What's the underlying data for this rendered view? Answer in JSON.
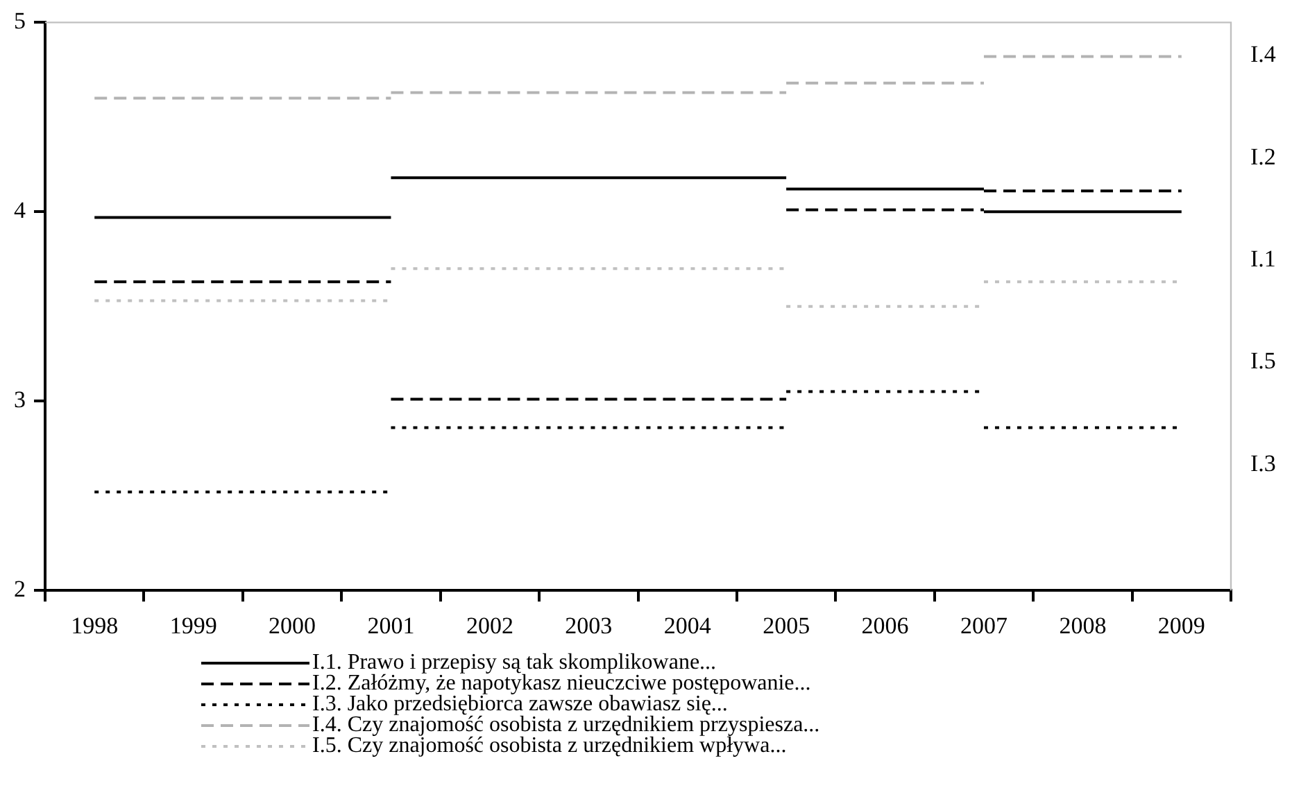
{
  "chart_data": {
    "type": "line",
    "xlim": [
      1997.5,
      2009.5
    ],
    "xticks": [
      {
        "value": 1997.5,
        "label": null
      },
      {
        "value": 1998,
        "label": "1998"
      },
      {
        "value": 1998.5,
        "label": null
      },
      {
        "value": 1999,
        "label": "1999"
      },
      {
        "value": 1999.5,
        "label": null
      },
      {
        "value": 2000,
        "label": "2000"
      },
      {
        "value": 2000.5,
        "label": null
      },
      {
        "value": 2001,
        "label": "2001"
      },
      {
        "value": 2001.5,
        "label": null
      },
      {
        "value": 2002,
        "label": "2002"
      },
      {
        "value": 2002.5,
        "label": null
      },
      {
        "value": 2003,
        "label": "2003"
      },
      {
        "value": 2003.5,
        "label": null
      },
      {
        "value": 2004,
        "label": "2004"
      },
      {
        "value": 2004.5,
        "label": null
      },
      {
        "value": 2005,
        "label": "2005"
      },
      {
        "value": 2005.5,
        "label": null
      },
      {
        "value": 2006,
        "label": "2006"
      },
      {
        "value": 2006.5,
        "label": null
      },
      {
        "value": 2007,
        "label": "2007"
      },
      {
        "value": 2007.5,
        "label": null
      },
      {
        "value": 2008,
        "label": "2008"
      },
      {
        "value": 2008.5,
        "label": null
      },
      {
        "value": 2009,
        "label": "2009"
      },
      {
        "value": 2009.5,
        "label": null
      }
    ],
    "ylim": [
      2,
      5
    ],
    "yticks": [
      2,
      3,
      4,
      5
    ],
    "grid": false,
    "legend": "bottom",
    "marker": "none",
    "series": [
      {
        "name": "I.1. Prawo i przepisy są tak skomplikowane...",
        "color": "#000000",
        "line_style": "solid",
        "x": [
          1998,
          2001,
          2001,
          2005,
          2005,
          2007,
          2007,
          2009
        ],
        "values": [
          3.97,
          3.97,
          4.18,
          4.18,
          4.12,
          4.12,
          4.0,
          4.0
        ]
      },
      {
        "name": "I.2. Załóżmy, że napotykasz nieuczciwe postępowanie...",
        "color": "#000000",
        "line_style": "dashed",
        "x": [
          1998,
          2001,
          2001,
          2005,
          2005,
          2007,
          2007,
          2009
        ],
        "values": [
          3.63,
          3.63,
          3.01,
          3.01,
          4.01,
          4.01,
          4.11,
          4.11
        ]
      },
      {
        "name": "I.3. Jako przedsiębiorca zawsze obawiasz się...",
        "color": "#000000",
        "line_style": "dotted",
        "x": [
          1998,
          2001,
          2001,
          2005,
          2005,
          2007,
          2007,
          2009
        ],
        "values": [
          2.52,
          2.52,
          2.86,
          2.86,
          3.05,
          3.05,
          2.86,
          2.86
        ]
      },
      {
        "name": "I.4. Czy znajomość osobista z urzędnikiem przyspiesza...",
        "color": "#b3b3b3",
        "line_style": "dashed",
        "x": [
          1998,
          2001,
          2001,
          2005,
          2005,
          2007,
          2007,
          2009
        ],
        "values": [
          4.6,
          4.6,
          4.63,
          4.63,
          4.68,
          4.68,
          4.82,
          4.82
        ]
      },
      {
        "name": "I.5. Czy znajomość osobista z urzędnikiem wpływa...",
        "color": "#c0c0c0",
        "line_style": "dotted",
        "x": [
          1998,
          2001,
          2001,
          2005,
          2005,
          2007,
          2007,
          2009
        ],
        "values": [
          3.53,
          3.53,
          3.7,
          3.7,
          3.5,
          3.5,
          3.63,
          3.63
        ]
      }
    ],
    "annotations": [
      "I.4",
      "I.2",
      "I.1",
      "I.5",
      "I.3"
    ]
  }
}
